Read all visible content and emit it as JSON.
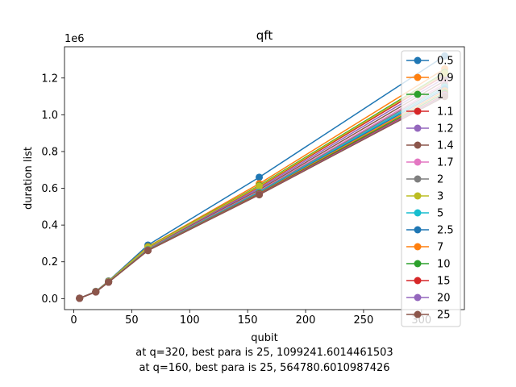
{
  "chart_data": {
    "type": "line",
    "title": "qft",
    "xlabel": "qubit",
    "ylabel": "duration list",
    "y_offset_label": "1e6",
    "xlim": [
      -8,
      337
    ],
    "ylim": [
      -60000,
      1370000
    ],
    "x_ticks": [
      0,
      50,
      100,
      150,
      200,
      250,
      300
    ],
    "x_tick_labels": [
      "0",
      "50",
      "100",
      "150",
      "200",
      "250",
      "300"
    ],
    "y_ticks": [
      0,
      200000,
      400000,
      600000,
      800000,
      1000000,
      1200000
    ],
    "y_tick_labels": [
      "0.0",
      "0.2",
      "0.4",
      "0.6",
      "0.8",
      "1.0",
      "1.2"
    ],
    "x": [
      5,
      19,
      30,
      64,
      160,
      320
    ],
    "legend_position": "upper right",
    "series": [
      {
        "name": "0.5",
        "color": "#1f77b4",
        "values": [
          1800,
          39000,
          96000,
          291000,
          660000,
          1320000
        ]
      },
      {
        "name": "0.9",
        "color": "#ff7f0e",
        "values": [
          1700,
          38000,
          94000,
          282000,
          625000,
          1250000
        ]
      },
      {
        "name": "1",
        "color": "#2ca02c",
        "values": [
          1700,
          37800,
          93500,
          280000,
          615000,
          1230000
        ]
      },
      {
        "name": "1.1",
        "color": "#d62728",
        "values": [
          1700,
          37600,
          93000,
          278000,
          608000,
          1215000
        ]
      },
      {
        "name": "1.2",
        "color": "#9467bd",
        "values": [
          1700,
          37400,
          92500,
          276000,
          600000,
          1200000
        ]
      },
      {
        "name": "1.4",
        "color": "#8c564b",
        "values": [
          1650,
          37200,
          92000,
          273000,
          592000,
          1185000
        ]
      },
      {
        "name": "1.7",
        "color": "#e377c2",
        "values": [
          1650,
          37000,
          91500,
          270000,
          585000,
          1170000
        ]
      },
      {
        "name": "2",
        "color": "#7f7f7f",
        "values": [
          1650,
          36800,
          91000,
          268000,
          582000,
          1160000
        ]
      },
      {
        "name": "3",
        "color": "#bcbd22",
        "values": [
          1650,
          37500,
          93000,
          279000,
          612000,
          1225000
        ]
      },
      {
        "name": "5",
        "color": "#17becf",
        "values": [
          1600,
          36600,
          90500,
          266000,
          578000,
          1150000
        ]
      },
      {
        "name": "2.5",
        "color": "#1f77b4",
        "values": [
          1650,
          36500,
          90000,
          265000,
          575000,
          1140000
        ]
      },
      {
        "name": "7",
        "color": "#ff7f0e",
        "values": [
          1600,
          36400,
          89800,
          264000,
          572000,
          1130000
        ]
      },
      {
        "name": "10",
        "color": "#2ca02c",
        "values": [
          1600,
          36300,
          89600,
          263000,
          570000,
          1120000
        ]
      },
      {
        "name": "15",
        "color": "#d62728",
        "values": [
          1600,
          36200,
          89400,
          262500,
          568000,
          1110000
        ]
      },
      {
        "name": "20",
        "color": "#9467bd",
        "values": [
          1600,
          36100,
          89200,
          262000,
          566000,
          1105000
        ]
      },
      {
        "name": "25",
        "color": "#8c564b",
        "values": [
          1600,
          36000,
          89000,
          261000,
          564780.6010987426,
          1099241.6014461503
        ]
      }
    ],
    "annotations": [
      "at q=320, best para is 25, 1099241.6014461503",
      "at q=160, best para is 25, 564780.6010987426"
    ]
  }
}
